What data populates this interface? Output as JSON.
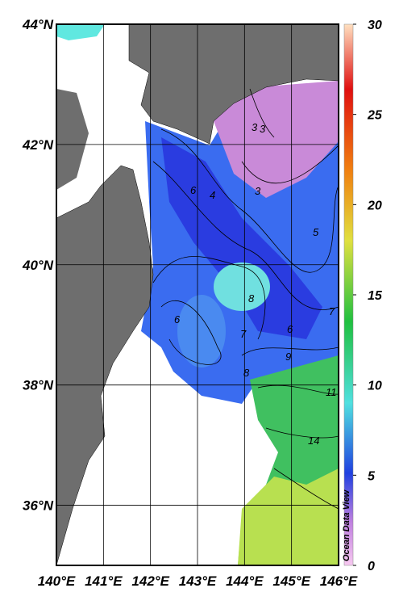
{
  "map": {
    "lat_ticks": [
      {
        "value": 44,
        "label": "44°N"
      },
      {
        "value": 42,
        "label": "42°N"
      },
      {
        "value": 40,
        "label": "40°N"
      },
      {
        "value": 38,
        "label": "38°N"
      },
      {
        "value": 36,
        "label": "36°N"
      }
    ],
    "lon_ticks": [
      {
        "value": 140,
        "label": "140°E"
      },
      {
        "value": 141,
        "label": "141°E"
      },
      {
        "value": 142,
        "label": "142°E"
      },
      {
        "value": 143,
        "label": "143°E"
      },
      {
        "value": 144,
        "label": "144°E"
      },
      {
        "value": 145,
        "label": "145°E"
      },
      {
        "value": 146,
        "label": "146°E"
      }
    ],
    "latlim": [
      35,
      44
    ],
    "lonlim": [
      140,
      146
    ],
    "contour_labels": [
      "3",
      "3",
      "3",
      "4",
      "6",
      "5",
      "8",
      "6",
      "7",
      "6",
      "7",
      "8",
      "9",
      "11",
      "14"
    ],
    "colorbar": {
      "ylim": [
        0,
        30
      ],
      "yticks": [
        0,
        5,
        10,
        15,
        20,
        25,
        30
      ]
    },
    "credit": "Ocean Data View"
  }
}
